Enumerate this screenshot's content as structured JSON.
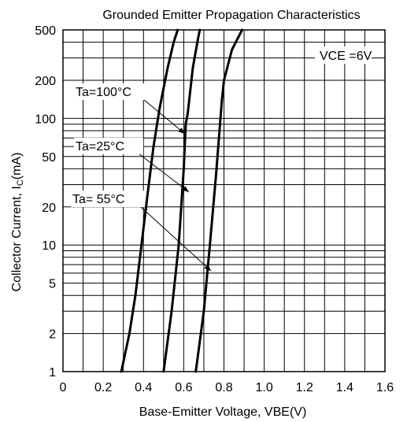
{
  "chart_data": {
    "type": "line",
    "title": "Grounded Emitter Propagation Characteristics",
    "xlabel": "Base-Emitter Voltage, VBE(V)",
    "ylabel": "Collector Current, I",
    "ylabel_subscript": "C",
    "ylabel_unit": "(mA)",
    "xlim": [
      0,
      1.6
    ],
    "ylim": [
      1,
      500
    ],
    "y_scale": "log",
    "grid": true,
    "x_ticks": [
      {
        "value": 0,
        "label": "0"
      },
      {
        "value": 0.2,
        "label": "0.2"
      },
      {
        "value": 0.4,
        "label": "0.4"
      },
      {
        "value": 0.6,
        "label": "0.6"
      },
      {
        "value": 0.8,
        "label": "0.8"
      },
      {
        "value": 1.0,
        "label": "1.0"
      },
      {
        "value": 1.2,
        "label": "1.2"
      },
      {
        "value": 1.4,
        "label": "1.4"
      },
      {
        "value": 1.6,
        "label": "1.6"
      }
    ],
    "y_ticks": [
      {
        "value": 1,
        "label": "1"
      },
      {
        "value": 2,
        "label": "2"
      },
      {
        "value": 5,
        "label": "5"
      },
      {
        "value": 10,
        "label": "10"
      },
      {
        "value": 20,
        "label": "20"
      },
      {
        "value": 50,
        "label": "50"
      },
      {
        "value": 100,
        "label": "100"
      },
      {
        "value": 200,
        "label": "200"
      },
      {
        "value": 500,
        "label": "500"
      }
    ],
    "y_minor_grid": [
      3,
      4,
      6,
      7,
      8,
      9,
      30,
      40,
      60,
      70,
      80,
      90,
      300,
      400
    ],
    "annotations": [
      {
        "text": "VCE =6V"
      }
    ],
    "series": [
      {
        "name": "Ta=100°C",
        "points": [
          [
            0.29,
            1
          ],
          [
            0.33,
            2
          ],
          [
            0.36,
            4
          ],
          [
            0.39,
            10
          ],
          [
            0.42,
            25
          ],
          [
            0.45,
            60
          ],
          [
            0.48,
            120
          ],
          [
            0.52,
            250
          ],
          [
            0.55,
            400
          ],
          [
            0.57,
            500
          ]
        ]
      },
      {
        "name": "Ta=25°C",
        "points": [
          [
            0.5,
            1
          ],
          [
            0.54,
            3
          ],
          [
            0.575,
            10
          ],
          [
            0.6,
            40
          ],
          [
            0.61,
            90
          ],
          [
            0.62,
            110
          ],
          [
            0.645,
            250
          ],
          [
            0.67,
            420
          ],
          [
            0.68,
            500
          ]
        ]
      },
      {
        "name": "Ta= 55°C",
        "points": [
          [
            0.66,
            1
          ],
          [
            0.7,
            3
          ],
          [
            0.73,
            10
          ],
          [
            0.76,
            35
          ],
          [
            0.79,
            140
          ],
          [
            0.8,
            200
          ],
          [
            0.84,
            350
          ],
          [
            0.89,
            500
          ]
        ]
      }
    ]
  }
}
